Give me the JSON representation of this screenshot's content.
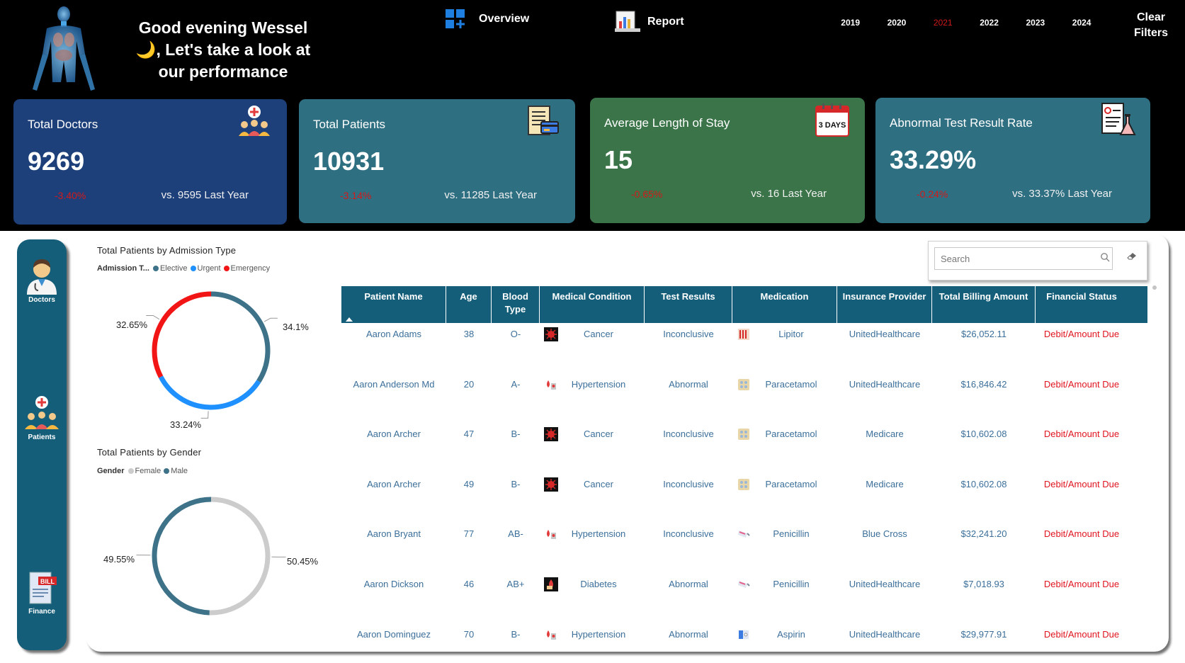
{
  "header": {
    "greeting": "Good evening Wessel 🌙, Let's take a look at our performance",
    "nav": {
      "overview_label": "Overview",
      "report_label": "Report"
    },
    "years": [
      "2019",
      "2020",
      "2021",
      "2022",
      "2023",
      "2024"
    ],
    "active_year": "2021",
    "clear_filters_label": "Clear Filters"
  },
  "kpis": [
    {
      "title": "Total Doctors",
      "value": "9269",
      "delta": "-3.40%",
      "comparison": "vs. 9595 Last Year",
      "icon": "doctors-icon",
      "color": "#1d3f7a"
    },
    {
      "title": "Total Patients",
      "value": "10931",
      "delta": "-3.14%",
      "comparison": "vs. 11285 Last Year",
      "icon": "patients-file-icon",
      "color": "#2f6f82"
    },
    {
      "title": "Average Length of Stay",
      "value": "15",
      "delta": "-0.65%",
      "comparison": "vs. 16 Last Year",
      "icon": "calendar-3-days-icon",
      "calendar_text": "3 DAYS",
      "color": "#3a7448"
    },
    {
      "title": "Abnormal Test Result Rate",
      "value": "33.29%",
      "delta": "-0.24%",
      "comparison": "vs. 33.37% Last Year",
      "icon": "lab-report-icon",
      "color": "#2f6f82"
    }
  ],
  "sidebar": {
    "items": [
      {
        "label": "Doctors",
        "icon": "doctor-icon"
      },
      {
        "label": "Patients",
        "icon": "patients-icon"
      },
      {
        "label": "Finance",
        "icon": "bill-icon",
        "icon_text": "BILL"
      }
    ]
  },
  "search": {
    "placeholder": "Search"
  },
  "chart_data": [
    {
      "type": "pie",
      "title": "Total Patients by Admission Type",
      "legend_title": "Admission T...",
      "labels": [
        "Elective",
        "Urgent",
        "Emergency"
      ],
      "values": [
        34.1,
        33.24,
        32.65
      ],
      "value_labels": [
        "34.1%",
        "33.24%",
        "32.65%"
      ],
      "colors": [
        "#3d7289",
        "#1e90ff",
        "#f21515"
      ],
      "legend_position": "top-left"
    },
    {
      "type": "pie",
      "title": "Total Patients by Gender",
      "legend_title": "Gender",
      "labels": [
        "Female",
        "Male"
      ],
      "values": [
        50.45,
        49.55
      ],
      "value_labels": [
        "50.45%",
        "49.55%"
      ],
      "colors": [
        "#cccccc",
        "#3d7289"
      ],
      "legend_position": "top-left"
    }
  ],
  "table": {
    "columns": [
      "Patient Name",
      "Age",
      "Blood Type",
      "Medical Condition",
      "Test Results",
      "Medication",
      "Insurance Provider",
      "Total Billing Amount",
      "Financial Status"
    ],
    "rows": [
      {
        "name": "Aaron Adams",
        "age": "38",
        "blood": "O-",
        "condition": "Cancer",
        "condition_icon": "virus-icon",
        "test": "Inconclusive",
        "medication": "Lipitor",
        "medication_icon": "pill-box-icon",
        "insurer": "UnitedHealthcare",
        "billing": "$26,052.11",
        "status": "Debit/Amount Due"
      },
      {
        "name": "Aaron Anderson Md",
        "age": "20",
        "blood": "A-",
        "condition": "Hypertension",
        "condition_icon": "blood-pressure-icon",
        "test": "Abnormal",
        "medication": "Paracetamol",
        "medication_icon": "tablet-pack-icon",
        "insurer": "UnitedHealthcare",
        "billing": "$16,846.42",
        "status": "Debit/Amount Due"
      },
      {
        "name": "Aaron Archer",
        "age": "47",
        "blood": "B-",
        "condition": "Cancer",
        "condition_icon": "virus-icon",
        "test": "Inconclusive",
        "medication": "Paracetamol",
        "medication_icon": "tablet-pack-icon",
        "insurer": "Medicare",
        "billing": "$10,602.08",
        "status": "Debit/Amount Due"
      },
      {
        "name": "Aaron Archer",
        "age": "49",
        "blood": "B-",
        "condition": "Cancer",
        "condition_icon": "virus-icon",
        "test": "Inconclusive",
        "medication": "Paracetamol",
        "medication_icon": "tablet-pack-icon",
        "insurer": "Medicare",
        "billing": "$10,602.08",
        "status": "Debit/Amount Due"
      },
      {
        "name": "Aaron Bryant",
        "age": "77",
        "blood": "AB-",
        "condition": "Hypertension",
        "condition_icon": "blood-pressure-icon",
        "test": "Inconclusive",
        "medication": "Penicillin",
        "medication_icon": "syringe-icon",
        "insurer": "Blue Cross",
        "billing": "$32,241.20",
        "status": "Debit/Amount Due"
      },
      {
        "name": "Aaron Dickson",
        "age": "46",
        "blood": "AB+",
        "condition": "Diabetes",
        "condition_icon": "glucose-meter-icon",
        "test": "Abnormal",
        "medication": "Penicillin",
        "medication_icon": "syringe-icon",
        "insurer": "UnitedHealthcare",
        "billing": "$7,018.93",
        "status": "Debit/Amount Due"
      },
      {
        "name": "Aaron Dominguez",
        "age": "70",
        "blood": "B-",
        "condition": "Hypertension",
        "condition_icon": "blood-pressure-icon",
        "test": "Abnormal",
        "medication": "Aspirin",
        "medication_icon": "aspirin-icon",
        "insurer": "UnitedHealthcare",
        "billing": "$29,977.91",
        "status": "Debit/Amount Due"
      }
    ]
  }
}
